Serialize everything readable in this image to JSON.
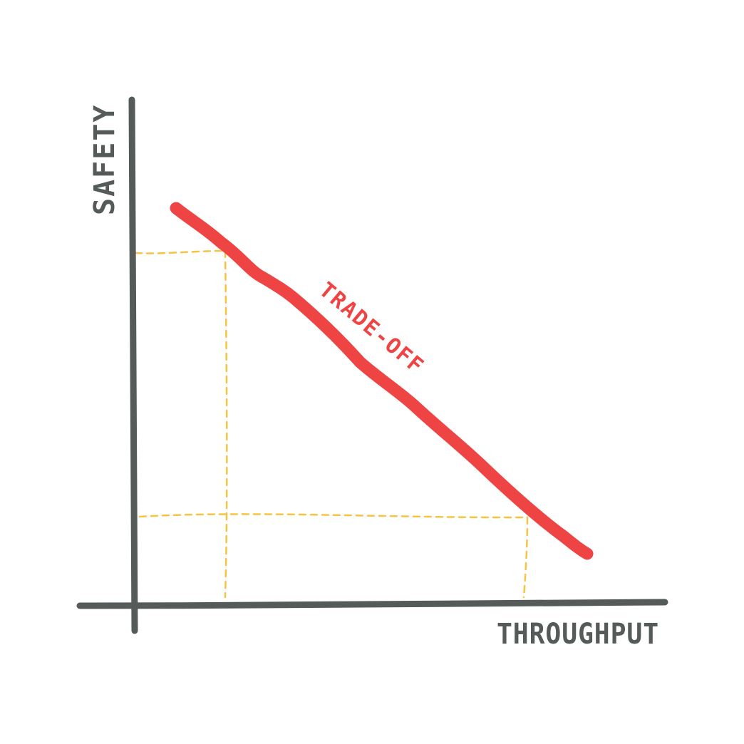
{
  "diagram": {
    "y_axis_label": "SAFETY",
    "x_axis_label": "THROUGHPUT",
    "curve_label": "TRADE-OFF",
    "colors": {
      "axis": "#555b59",
      "curve": "#ef4444",
      "guide": "#f6c343",
      "background": "#ffffff"
    }
  }
}
